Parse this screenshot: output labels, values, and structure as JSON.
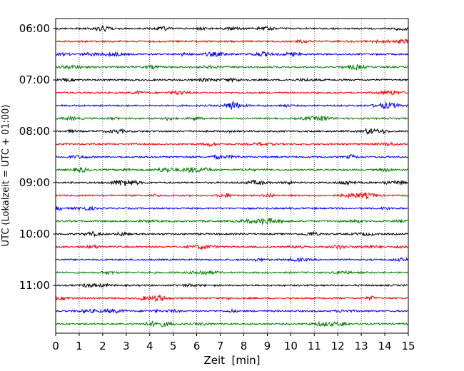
{
  "chart_data": {
    "type": "line",
    "title": "",
    "xlabel": "Zeit  [min]",
    "ylabel": "UTC (Lokalzeit = UTC + 01:00)",
    "xlim": [
      0,
      15
    ],
    "x_ticks": [
      "0",
      "1",
      "2",
      "3",
      "4",
      "5",
      "6",
      "7",
      "8",
      "9",
      "10",
      "11",
      "12",
      "13",
      "14",
      "15"
    ],
    "y_tick_labels": [
      "06:00",
      "07:00",
      "08:00",
      "09:00",
      "10:00",
      "11:00"
    ],
    "y_tick_rows": [
      0,
      4,
      8,
      12,
      16,
      20
    ],
    "row_count": 24,
    "row_interval_minutes": 15,
    "first_row_start": "06:00",
    "last_row_start": "11:45",
    "color_cycle": [
      "#000000",
      "#ff0000",
      "#0000ff",
      "#008000"
    ],
    "grid": "vertical dotted lines at each minute",
    "legend": "none"
  }
}
